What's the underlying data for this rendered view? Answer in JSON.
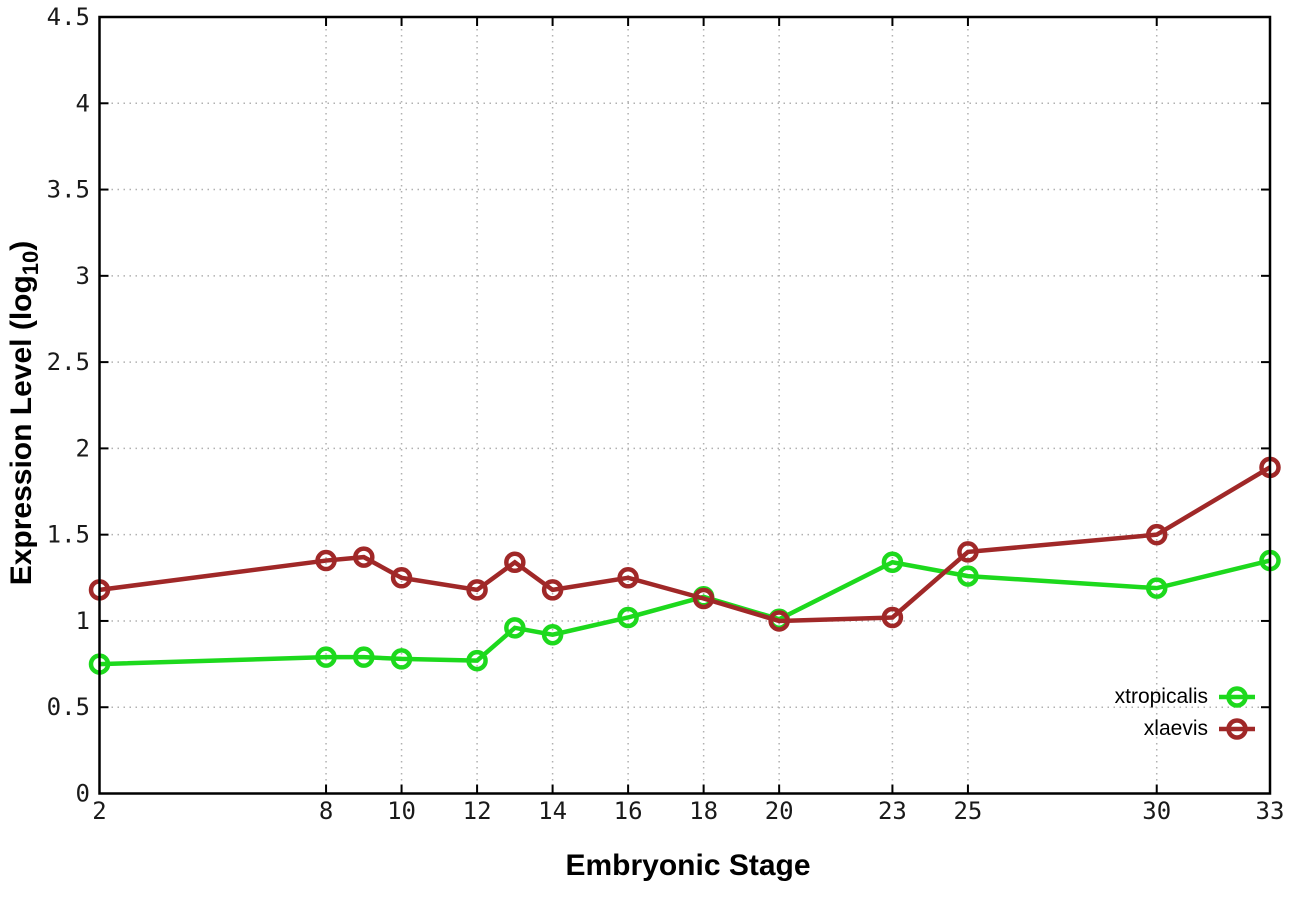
{
  "chart_data": {
    "type": "line",
    "title": "",
    "xlabel": "Embryonic Stage",
    "ylabel": "Expression Level (log10)",
    "ylabel_parts": {
      "main": "Expression Level (log",
      "sub": "10",
      "close": ")"
    },
    "xlim": [
      2,
      33
    ],
    "ylim": [
      0,
      4.5
    ],
    "x_ticks": [
      2,
      8,
      10,
      12,
      14,
      16,
      18,
      20,
      23,
      25,
      30,
      33
    ],
    "x_tick_labels": [
      "2",
      "8",
      "10",
      "12",
      "14",
      "16",
      "18",
      "20",
      "23",
      "25",
      "30",
      "33"
    ],
    "y_ticks": [
      0,
      0.5,
      1,
      1.5,
      2,
      2.5,
      3,
      3.5,
      4,
      4.5
    ],
    "y_tick_labels": [
      "0",
      "0.5",
      "1",
      "1.5",
      "2",
      "2.5",
      "3",
      "3.5",
      "4",
      "4.5"
    ],
    "grid": true,
    "legend_position": "inside-bottom-right",
    "x": [
      2,
      8,
      9,
      10,
      12,
      13,
      14,
      16,
      18,
      20,
      23,
      25,
      30,
      33
    ],
    "series": [
      {
        "name": "xtropicalis",
        "color": "#1dd91d",
        "values": [
          0.75,
          0.79,
          0.79,
          0.78,
          0.77,
          0.96,
          0.92,
          1.02,
          1.14,
          1.01,
          1.34,
          1.26,
          1.19,
          1.35
        ]
      },
      {
        "name": "xlaevis",
        "color": "#a02828",
        "values": [
          1.18,
          1.35,
          1.37,
          1.25,
          1.18,
          1.34,
          1.18,
          1.25,
          1.13,
          1.0,
          1.02,
          1.4,
          1.5,
          1.89
        ]
      }
    ],
    "axis_color": "#000000",
    "grid_color": "#b0b0b0",
    "tick_label_color": "#1a1a1a"
  }
}
